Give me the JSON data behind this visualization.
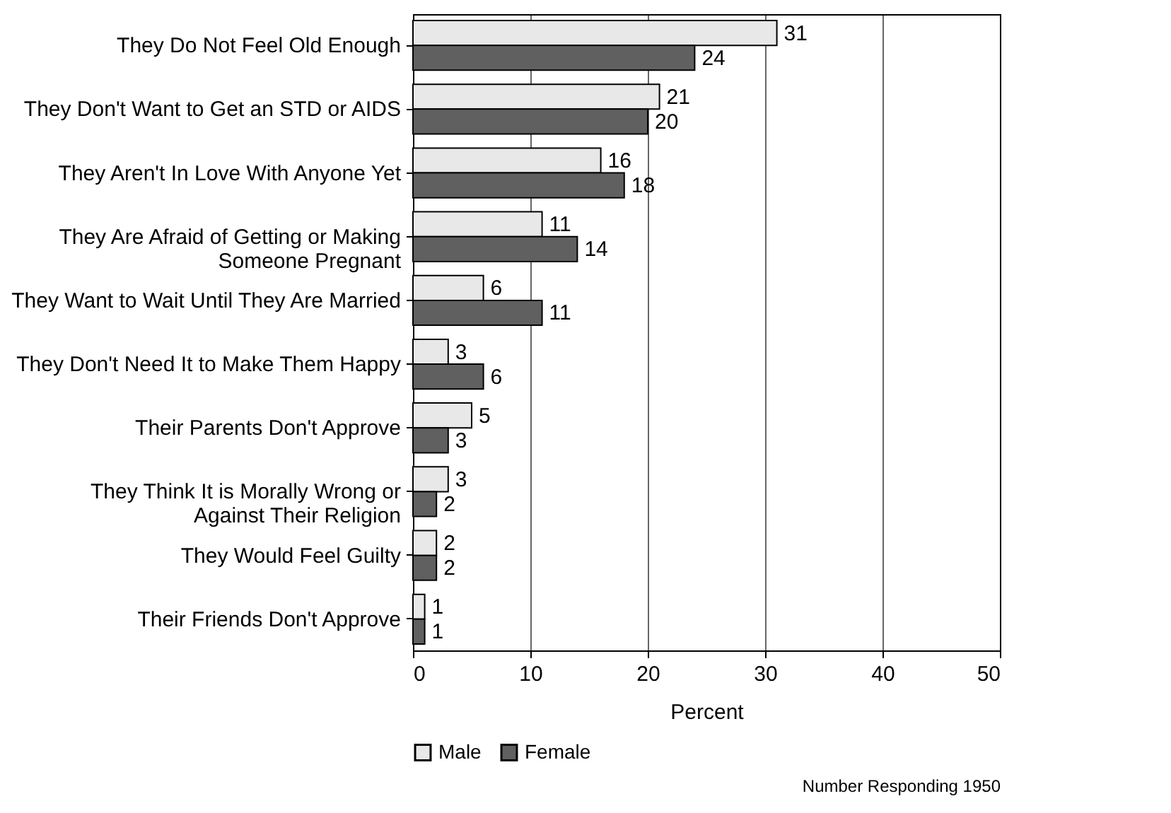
{
  "chart_data": {
    "type": "bar",
    "orientation": "horizontal",
    "xlabel": "Percent",
    "categories": [
      "They Do Not Feel Old Enough",
      "They Don't Want to Get an STD or AIDS",
      "They Aren't In Love With Anyone Yet",
      "They Are Afraid of Getting or Making Someone Pregnant",
      "They Want to Wait Until They Are Married",
      "They Don't Need It to Make Them Happy",
      "Their Parents Don't Approve",
      "They Think It is Morally Wrong or Against Their Religion",
      "They Would Feel Guilty",
      "Their Friends Don't Approve"
    ],
    "series": [
      {
        "name": "Male",
        "color": "#e8e8e8",
        "values": [
          31,
          21,
          16,
          11,
          6,
          3,
          5,
          3,
          2,
          1
        ]
      },
      {
        "name": "Female",
        "color": "#606060",
        "values": [
          24,
          20,
          18,
          14,
          11,
          6,
          3,
          2,
          2,
          1
        ]
      }
    ],
    "xlim": [
      0,
      50
    ],
    "xticks": [
      0,
      10,
      20,
      30,
      40,
      50
    ],
    "grid": "x",
    "data_labels": true,
    "legend": "bottom",
    "annotations": [
      "Number Responding 1950"
    ]
  }
}
